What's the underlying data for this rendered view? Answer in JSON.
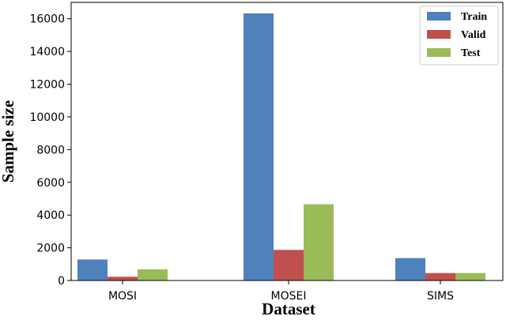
{
  "chart_data": {
    "type": "bar",
    "title": "",
    "xlabel": "Dataset",
    "ylabel": "Sample size",
    "categories": [
      "MOSI",
      "MOSEI",
      "SIMS"
    ],
    "series": [
      {
        "name": "Train",
        "color": "#4f81bd",
        "values": [
          1284,
          16326,
          1368
        ]
      },
      {
        "name": "Valid",
        "color": "#c0504d",
        "values": [
          229,
          1871,
          456
        ]
      },
      {
        "name": "Test",
        "color": "#9bbb59",
        "values": [
          686,
          4659,
          457
        ]
      }
    ],
    "ylim": [
      0,
      17000
    ],
    "yticks": [
      0,
      2000,
      4000,
      6000,
      8000,
      10000,
      12000,
      14000,
      16000
    ],
    "grid": false,
    "legend_position": "top-right"
  }
}
